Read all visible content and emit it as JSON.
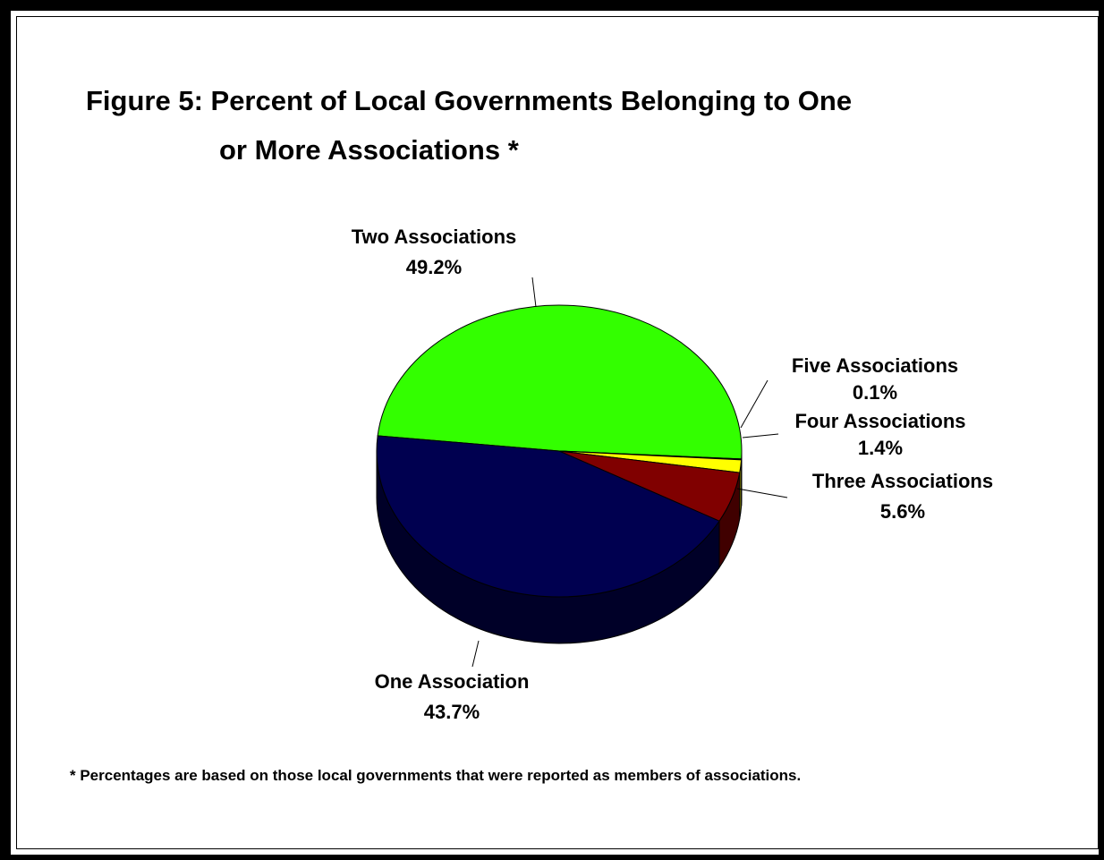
{
  "title_line1": "Figure 5:  Percent of Local Governments Belonging to One",
  "title_line2": "or More Associations *",
  "footnote": "* Percentages are based on those local governments that were reported as members of associations.",
  "chart_data": {
    "type": "pie",
    "title": "Figure 5:  Percent of Local Governments Belonging to One or More Associations *",
    "slices": [
      {
        "label": "Two Associations",
        "value": 49.2,
        "value_label": "49.2%",
        "color": "#33FF00",
        "side_color": "#1a9900"
      },
      {
        "label": "Five Associations",
        "value": 0.1,
        "value_label": "0.1%",
        "color": "#FFFFFF",
        "side_color": "#cccccc"
      },
      {
        "label": "Four Associations",
        "value": 1.4,
        "value_label": "1.4%",
        "color": "#FFFF00",
        "side_color": "#999900"
      },
      {
        "label": "Three Associations",
        "value": 5.6,
        "value_label": "5.6%",
        "color": "#800000",
        "side_color": "#400000"
      },
      {
        "label": "One Association",
        "value": 43.7,
        "value_label": "43.7%",
        "color": "#000050",
        "side_color": "#000028"
      }
    ],
    "style": "3d"
  }
}
